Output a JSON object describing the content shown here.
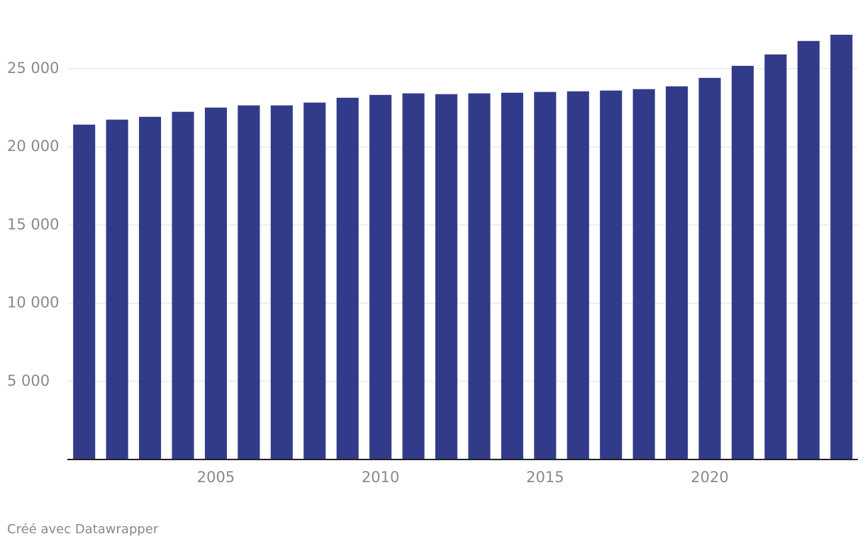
{
  "chart_data": {
    "type": "bar",
    "categories": [
      null,
      null,
      null,
      null,
      "2005",
      null,
      null,
      null,
      null,
      "2010",
      null,
      null,
      null,
      null,
      "2015",
      null,
      null,
      null,
      null,
      "2020",
      null,
      null,
      null,
      null
    ],
    "values": [
      21420,
      21740,
      21920,
      22240,
      22510,
      22650,
      22650,
      22830,
      23140,
      23320,
      23420,
      23370,
      23420,
      23460,
      23510,
      23550,
      23600,
      23690,
      23870,
      24410,
      25180,
      25910,
      26770,
      27170
    ],
    "color": "#323b8a",
    "ylim": [
      0,
      27500
    ],
    "yticks": [
      {
        "value": 5000,
        "label": "5 000"
      },
      {
        "value": 10000,
        "label": "10 000"
      },
      {
        "value": 15000,
        "label": "15 000"
      },
      {
        "value": 20000,
        "label": "20 000"
      },
      {
        "value": 25000,
        "label": "25 000"
      }
    ],
    "grid": true,
    "footer": "Créé avec Datawrapper"
  }
}
